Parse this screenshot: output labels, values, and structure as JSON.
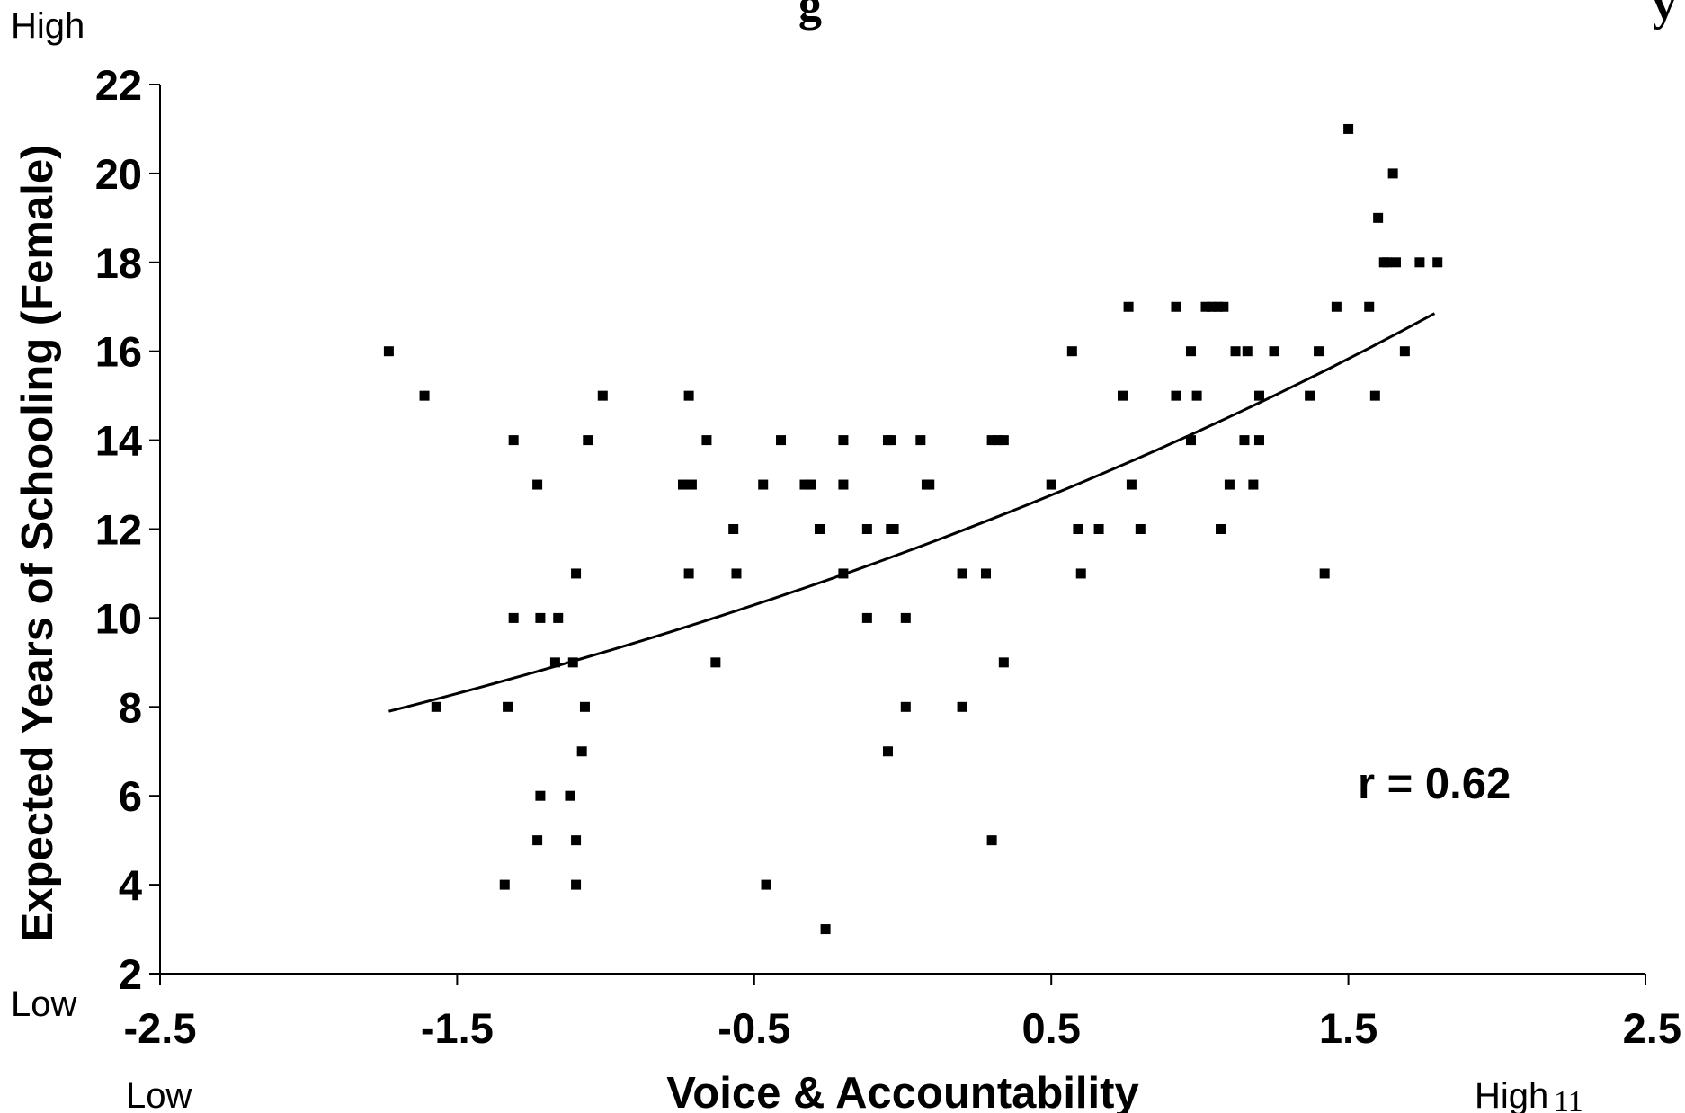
{
  "page": {
    "slide_number": "11",
    "title_fragment_left": "g",
    "title_fragment_right": "y"
  },
  "chart_data": {
    "type": "scatter",
    "xlabel": "Voice & Accountability",
    "ylabel": "Expected Years of Schooling (Female)",
    "xlim": [
      -2.5,
      2.5
    ],
    "ylim": [
      2,
      22
    ],
    "x_ticks": [
      "-2.5",
      "-1.5",
      "-0.5",
      "0.5",
      "1.5",
      "2.5"
    ],
    "y_ticks": [
      "2",
      "4",
      "6",
      "8",
      "10",
      "12",
      "14",
      "16",
      "18",
      "20",
      "22"
    ],
    "x_low_label": "Low",
    "x_high_label": "High",
    "y_low_label": "Low",
    "y_high_label": "High",
    "annotation": "r = 0.62",
    "grid": false,
    "marker": "square",
    "color": "#000000",
    "points": [
      [
        -1.73,
        16
      ],
      [
        -1.61,
        15
      ],
      [
        -1.57,
        8
      ],
      [
        -1.31,
        14
      ],
      [
        -1.23,
        13
      ],
      [
        -1.22,
        10
      ],
      [
        -1.16,
        10
      ],
      [
        -1.17,
        9
      ],
      [
        -1.34,
        4
      ],
      [
        -1.33,
        8
      ],
      [
        -1.23,
        5
      ],
      [
        -1.22,
        6
      ],
      [
        -1.31,
        10
      ],
      [
        -1.12,
        6
      ],
      [
        -1.11,
        9
      ],
      [
        -1.1,
        11
      ],
      [
        -1.07,
        8
      ],
      [
        -1.08,
        7
      ],
      [
        -1.1,
        5
      ],
      [
        -1.1,
        4
      ],
      [
        -1.06,
        14
      ],
      [
        -1.01,
        15
      ],
      [
        -0.71,
        13
      ],
      [
        -0.74,
        13
      ],
      [
        -0.72,
        15
      ],
      [
        -0.72,
        11
      ],
      [
        -0.66,
        14
      ],
      [
        -0.57,
        12
      ],
      [
        -0.56,
        11
      ],
      [
        -0.63,
        9
      ],
      [
        -0.47,
        13
      ],
      [
        -0.41,
        14
      ],
      [
        -0.33,
        13
      ],
      [
        -0.31,
        13
      ],
      [
        -0.28,
        12
      ],
      [
        -0.2,
        13
      ],
      [
        -0.2,
        14
      ],
      [
        -0.2,
        11
      ],
      [
        -0.12,
        12
      ],
      [
        -0.12,
        10
      ],
      [
        -0.04,
        12
      ],
      [
        -0.04,
        14
      ],
      [
        -0.05,
        14
      ],
      [
        -0.03,
        12
      ],
      [
        0.06,
        14
      ],
      [
        0.08,
        13
      ],
      [
        0.09,
        13
      ],
      [
        -0.05,
        7
      ],
      [
        0.01,
        10
      ],
      [
        0.01,
        8
      ],
      [
        -0.46,
        4
      ],
      [
        -0.26,
        3
      ],
      [
        0.2,
        8
      ],
      [
        0.2,
        11
      ],
      [
        0.28,
        11
      ],
      [
        0.3,
        14
      ],
      [
        0.32,
        14
      ],
      [
        0.34,
        14
      ],
      [
        0.3,
        5
      ],
      [
        0.34,
        9
      ],
      [
        0.5,
        13
      ],
      [
        0.57,
        16
      ],
      [
        0.59,
        12
      ],
      [
        0.6,
        11
      ],
      [
        0.66,
        12
      ],
      [
        0.74,
        15
      ],
      [
        0.76,
        17
      ],
      [
        0.77,
        13
      ],
      [
        0.8,
        12
      ],
      [
        0.92,
        17
      ],
      [
        0.92,
        15
      ],
      [
        0.97,
        16
      ],
      [
        0.97,
        14
      ],
      [
        0.99,
        15
      ],
      [
        1.02,
        17
      ],
      [
        1.04,
        17
      ],
      [
        1.06,
        17
      ],
      [
        1.08,
        17
      ],
      [
        1.07,
        12
      ],
      [
        1.1,
        13
      ],
      [
        1.12,
        16
      ],
      [
        1.15,
        14
      ],
      [
        1.16,
        16
      ],
      [
        1.18,
        13
      ],
      [
        1.2,
        15
      ],
      [
        1.2,
        14
      ],
      [
        1.25,
        16
      ],
      [
        1.37,
        15
      ],
      [
        1.4,
        16
      ],
      [
        1.42,
        11
      ],
      [
        1.46,
        17
      ],
      [
        1.5,
        21
      ],
      [
        1.57,
        17
      ],
      [
        1.59,
        15
      ],
      [
        1.6,
        19
      ],
      [
        1.62,
        18
      ],
      [
        1.63,
        18
      ],
      [
        1.66,
        18
      ],
      [
        1.65,
        20
      ],
      [
        1.69,
        16
      ],
      [
        1.74,
        18
      ],
      [
        1.8,
        18
      ]
    ],
    "trendline": {
      "type": "exponential",
      "x_range": [
        -1.73,
        1.79
      ],
      "y_start": 7.9,
      "y_end": 16.85
    }
  }
}
